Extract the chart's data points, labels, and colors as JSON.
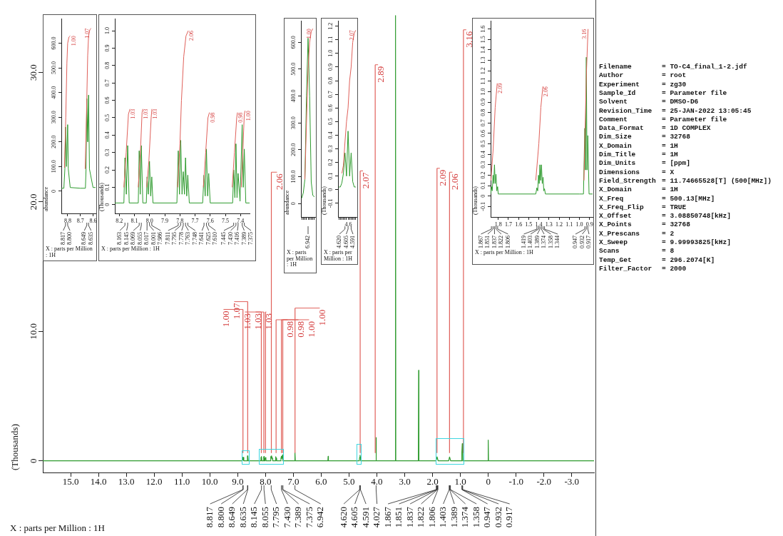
{
  "chart_data": [
    {
      "type": "line",
      "xlabel": "X : parts per Million : 1H",
      "ylabel": "(Thousands)",
      "marker": "none",
      "xlim": [
        16.0,
        -3.8
      ],
      "xticks": [
        {
          "value": 15,
          "label": "15.0"
        },
        {
          "value": 14,
          "label": "14.0"
        },
        {
          "value": 13,
          "label": "13.0"
        },
        {
          "value": 12,
          "label": "12.0"
        },
        {
          "value": 11,
          "label": "11.0"
        },
        {
          "value": 10,
          "label": "10.0"
        },
        {
          "value": 9,
          "label": "9.0"
        },
        {
          "value": 8,
          "label": "8.0"
        },
        {
          "value": 7,
          "label": "7.0"
        },
        {
          "value": 6,
          "label": "6.0"
        },
        {
          "value": 5,
          "label": "5.0"
        },
        {
          "value": 4,
          "label": "4.0"
        },
        {
          "value": 3,
          "label": "3.0"
        },
        {
          "value": 2,
          "label": "2.0"
        },
        {
          "value": 1,
          "label": "1.0"
        },
        0,
        {
          "value": -1,
          "label": "-1.0"
        },
        {
          "value": -2,
          "label": "-2.0"
        },
        {
          "value": -3,
          "label": "-3.0"
        }
      ],
      "ylim": [
        -0.9,
        34.5
      ],
      "yticks": [
        0,
        {
          "value": 10,
          "label": "10.0"
        },
        {
          "value": 20,
          "label": "20.0"
        },
        {
          "value": 30,
          "label": "30.0"
        }
      ],
      "x": [
        16.0,
        8.84,
        8.817,
        8.809,
        8.8,
        8.78,
        8.66,
        8.649,
        8.642,
        8.635,
        8.62,
        8.17,
        8.163,
        8.154,
        8.145,
        8.13,
        8.075,
        8.069,
        8.062,
        8.055,
        8.045,
        8.022,
        8.017,
        8.001,
        7.986,
        7.98,
        7.815,
        7.811,
        7.795,
        7.778,
        7.763,
        7.748,
        7.74,
        7.645,
        7.641,
        7.625,
        7.61,
        7.6,
        7.45,
        7.445,
        7.43,
        7.416,
        7.389,
        7.375,
        7.37,
        6.95,
        6.942,
        6.93,
        5.76,
        5.75,
        5.74,
        4.63,
        4.62,
        4.605,
        4.591,
        4.58,
        4.035,
        4.027,
        4.02,
        3.34,
        3.33,
        3.32,
        2.51,
        2.5,
        2.49,
        1.875,
        1.837,
        1.8,
        1.42,
        1.389,
        1.35,
        0.955,
        0.947,
        0.932,
        0.917,
        0.91,
        0.01,
        0.0,
        -0.01,
        -3.8
      ],
      "series": [
        {
          "color": "#2e9b2e",
          "values": [
            0,
            0,
            0.26,
            0.05,
            0.27,
            0,
            0,
            0.38,
            0.1,
            0.39,
            0,
            0,
            0.27,
            0.05,
            0.34,
            0,
            0,
            0.31,
            0.05,
            0.34,
            0,
            0,
            0.16,
            0.25,
            0.16,
            0,
            0,
            0.31,
            0.37,
            0.19,
            0.27,
            0.17,
            0,
            0,
            0.17,
            0.32,
            0.18,
            0,
            0,
            0.2,
            0.35,
            0.18,
            0.46,
            0.32,
            0,
            0,
            0.62,
            0,
            0,
            0.35,
            0,
            0,
            0.27,
            0.43,
            0.27,
            0,
            0,
            1.8,
            0,
            0,
            34.4,
            0,
            0,
            7.0,
            0,
            0,
            0.31,
            0,
            0,
            0.3,
            0,
            0,
            0.65,
            1.33,
            0.58,
            0,
            0,
            1.6,
            0,
            0
          ]
        },
        {
          "color": "#e0605a",
          "x": [
            8.81,
            8.81
          ],
          "values": [
            0.6,
            11.7
          ]
        },
        {
          "color": "#e0605a",
          "x": [
            8.64,
            8.64
          ],
          "values": [
            0.6,
            12.3
          ]
        },
        {
          "color": "#e0605a",
          "x": [
            8.15,
            8.15
          ],
          "values": [
            0.6,
            11.5
          ]
        },
        {
          "color": "#e0605a",
          "x": [
            8.06,
            8.06
          ],
          "values": [
            0.6,
            11.5
          ]
        },
        {
          "color": "#e0605a",
          "x": [
            8.0,
            8.0
          ],
          "values": [
            0.6,
            11.5
          ]
        },
        {
          "color": "#e0605a",
          "x": [
            7.79,
            7.79
          ],
          "values": [
            0.6,
            22.3
          ]
        },
        {
          "color": "#e0605a",
          "x": [
            7.62,
            7.62
          ],
          "values": [
            0.6,
            10.9
          ]
        },
        {
          "color": "#e0605a",
          "x": [
            7.43,
            7.43
          ],
          "values": [
            0.6,
            10.9
          ]
        },
        {
          "color": "#e0605a",
          "x": [
            7.38,
            7.38
          ],
          "values": [
            0.6,
            10.9
          ]
        },
        {
          "color": "#e0605a",
          "x": [
            6.94,
            6.94
          ],
          "values": [
            0.6,
            11.8
          ]
        },
        {
          "color": "#e0605a",
          "x": [
            4.6,
            4.6
          ],
          "values": [
            0.6,
            22.4
          ]
        },
        {
          "color": "#e0605a",
          "x": [
            4.06,
            4.06
          ],
          "values": [
            0.6,
            30.6
          ]
        },
        {
          "color": "#e0605a",
          "x": [
            1.84,
            1.84
          ],
          "values": [
            0.6,
            22.6
          ]
        },
        {
          "color": "#e0605a",
          "x": [
            1.39,
            1.39
          ],
          "values": [
            0.6,
            22.3
          ]
        },
        {
          "color": "#e0605a",
          "x": [
            0.89,
            0.89
          ],
          "values": [
            0.6,
            33.3
          ]
        }
      ],
      "annotations": [
        {
          "text": "1.00",
          "x": 8.81,
          "y": 11.7
        },
        {
          "text": "1.07",
          "x": 8.64,
          "y": 12.3
        },
        {
          "text": "1.03",
          "x": 8.15,
          "y": 11.5
        },
        {
          "text": "1.03",
          "x": 8.06,
          "y": 11.5
        },
        {
          "text": "1.03",
          "x": 8.0,
          "y": 11.5
        },
        {
          "text": "2.06",
          "x": 7.79,
          "y": 22.3
        },
        {
          "text": "0.98",
          "x": 7.62,
          "y": 10.9
        },
        {
          "text": "0.98",
          "x": 7.43,
          "y": 10.9
        },
        {
          "text": "1.00",
          "x": 7.38,
          "y": 10.9
        },
        {
          "text": "1.00",
          "x": 6.94,
          "y": 11.8
        },
        {
          "text": "2.07",
          "x": 4.6,
          "y": 22.4
        },
        {
          "text": "2.89",
          "x": 4.06,
          "y": 30.6
        },
        {
          "text": "2.09",
          "x": 1.84,
          "y": 22.6
        },
        {
          "text": "2.06",
          "x": 1.39,
          "y": 22.3
        },
        {
          "text": "3.16",
          "x": 0.89,
          "y": 33.3
        },
        {
          "text": "8.817",
          "x": 8.817
        },
        {
          "text": "8.800",
          "x": 8.8
        },
        {
          "text": "8.649",
          "x": 8.649
        },
        {
          "text": "8.635",
          "x": 8.635
        },
        {
          "text": "8.145",
          "x": 8.145
        },
        {
          "text": "8.055",
          "x": 8.055
        },
        {
          "text": "7.795",
          "x": 7.795
        },
        {
          "text": "7.430",
          "x": 7.43
        },
        {
          "text": "7.389",
          "x": 7.389
        },
        {
          "text": "7.375",
          "x": 7.375
        },
        {
          "text": "6.942",
          "x": 6.942
        },
        {
          "text": "4.620",
          "x": 4.62
        },
        {
          "text": "4.605",
          "x": 4.605
        },
        {
          "text": "4.591",
          "x": 4.591
        },
        {
          "text": "4.027",
          "x": 4.027
        },
        {
          "text": "1.867",
          "x": 1.867
        },
        {
          "text": "1.851",
          "x": 1.851
        },
        {
          "text": "1.837",
          "x": 1.837
        },
        {
          "text": "1.822",
          "x": 1.822
        },
        {
          "text": "1.806",
          "x": 1.806
        },
        {
          "text": "1.403",
          "x": 1.403
        },
        {
          "text": "1.389",
          "x": 1.389
        },
        {
          "text": "1.374",
          "x": 1.374
        },
        {
          "text": "1.358",
          "x": 1.358
        },
        {
          "text": "0.947",
          "x": 0.947
        },
        {
          "text": "0.932",
          "x": 0.932
        },
        {
          "text": "0.917",
          "x": 0.917
        }
      ]
    },
    {
      "type": "line",
      "xlabel": "X : parts per Million : 1H",
      "ylabel": "abundance",
      "marker": "none",
      "xlim": [
        8.85,
        8.58
      ],
      "xticks": [
        8.8,
        8.7,
        8.6
      ],
      "ylim": [
        -90,
        700
      ],
      "yticks": [
        0,
        {
          "value": 100,
          "label": "100.0"
        },
        {
          "value": 200,
          "label": "200.0"
        },
        {
          "value": 300,
          "label": "300.0"
        },
        {
          "value": 400,
          "label": "400.0"
        },
        {
          "value": 500,
          "label": "500.0"
        },
        {
          "value": 600,
          "label": "600.0"
        }
      ],
      "x": [
        8.85,
        8.83,
        8.822,
        8.817,
        8.809,
        8.8,
        8.795,
        8.78,
        8.7,
        8.66,
        8.655,
        8.649,
        8.642,
        8.635,
        8.628,
        8.6,
        8.58
      ],
      "series": [
        {
          "color": "#2e9b2e",
          "values": [
            12,
            12,
            90,
            260,
            100,
            270,
            90,
            15,
            12,
            12,
            90,
            375,
            200,
            390,
            90,
            15,
            15
          ]
        },
        {
          "color": "#e0605a",
          "x": [
            8.825,
            8.815,
            8.806,
            8.8,
            8.79,
            8.78,
            8.7,
            8.662,
            8.652,
            8.642,
            8.635,
            8.625,
            8.615
          ],
          "values": [
            95,
            300,
            520,
            600,
            625,
            630,
            null,
            90,
            300,
            550,
            630,
            655,
            660
          ]
        }
      ],
      "annotations": [
        {
          "text": "1.00",
          "x": 8.78,
          "y": 630
        },
        {
          "text": "1.07",
          "x": 8.615,
          "y": 660
        },
        {
          "text": "8.817",
          "x": 8.817
        },
        {
          "text": "8.800",
          "x": 8.8
        },
        {
          "text": "8.649",
          "x": 8.649
        },
        {
          "text": "8.635",
          "x": 8.635
        }
      ]
    },
    {
      "type": "line",
      "xlabel": "X : parts per Million : 1H",
      "ylabel": "(Thousands)",
      "marker": "none",
      "xlim": [
        8.23,
        7.34
      ],
      "xticks": [
        8.2,
        8.1,
        {
          "value": 8.0,
          "label": "8.0"
        },
        7.9,
        7.8,
        7.7,
        7.6,
        7.5,
        7.4
      ],
      "ylim": [
        -0.05,
        1.07
      ],
      "yticks": [
        0,
        0.1,
        0.2,
        0.3,
        0.4,
        0.5,
        0.6,
        0.7,
        0.8,
        0.9,
        {
          "value": 1.0,
          "label": "1.0"
        }
      ],
      "x": [
        8.23,
        8.17,
        8.163,
        8.154,
        8.145,
        8.135,
        8.075,
        8.069,
        8.062,
        8.055,
        8.045,
        8.022,
        8.017,
        8.009,
        8.001,
        7.993,
        7.986,
        7.978,
        7.82,
        7.811,
        7.803,
        7.795,
        7.786,
        7.778,
        7.77,
        7.763,
        7.755,
        7.748,
        7.738,
        7.65,
        7.641,
        7.633,
        7.625,
        7.617,
        7.61,
        7.6,
        7.452,
        7.445,
        7.437,
        7.43,
        7.423,
        7.416,
        7.403,
        7.389,
        7.382,
        7.375,
        7.365,
        7.34
      ],
      "series": [
        {
          "color": "#2e9b2e",
          "values": [
            0.01,
            0.01,
            0.27,
            0.06,
            0.34,
            0.01,
            0.01,
            0.31,
            0.06,
            0.34,
            0.01,
            0.01,
            0.16,
            0.06,
            0.25,
            0.05,
            0.16,
            0.01,
            0.01,
            0.31,
            0.06,
            0.37,
            0.06,
            0.19,
            0.06,
            0.27,
            0.05,
            0.17,
            0.01,
            0.01,
            0.17,
            0.05,
            0.32,
            0.05,
            0.18,
            0.01,
            0.01,
            0.2,
            0.04,
            0.35,
            0.04,
            0.18,
            0.02,
            0.46,
            0.1,
            0.32,
            0.01,
            0.01
          ]
        },
        {
          "color": "#e0605a",
          "x": [
            8.17,
            8.155,
            8.14,
            8.13,
            8.1,
            8.075,
            8.06,
            8.05,
            8.045,
            8.03,
            8.02,
            8.005,
            7.99,
            7.985,
            7.9,
            7.815,
            7.8,
            7.79,
            7.775,
            7.76,
            7.745,
            7.7,
            7.645,
            7.63,
            7.615,
            7.605,
            7.5,
            7.455,
            7.44,
            7.425,
            7.42,
            7.4,
            7.395,
            7.385,
            7.375,
            7.37
          ],
          "values": [
            0.1,
            0.3,
            0.52,
            0.55,
            null,
            0.1,
            0.32,
            0.53,
            0.55,
            null,
            0.1,
            0.25,
            0.5,
            0.55,
            null,
            0.1,
            0.35,
            0.6,
            0.85,
            0.97,
            1.0,
            null,
            0.1,
            0.3,
            0.5,
            0.53,
            null,
            0.1,
            0.3,
            0.5,
            0.53,
            null,
            0.1,
            0.3,
            0.52,
            0.54
          ]
        }
      ],
      "annotations": [
        {
          "text": "1.03",
          "x": 8.13,
          "y": 0.55
        },
        {
          "text": "1.03",
          "x": 8.045,
          "y": 0.55
        },
        {
          "text": "1.03",
          "x": 7.985,
          "y": 0.55
        },
        {
          "text": "2.06",
          "x": 7.745,
          "y": 1.0
        },
        {
          "text": "0.98",
          "x": 7.605,
          "y": 0.53
        },
        {
          "text": "0.98",
          "x": 7.42,
          "y": 0.53
        },
        {
          "text": "1.00",
          "x": 7.37,
          "y": 0.54
        },
        {
          "text": "8.163",
          "x": 8.163
        },
        {
          "text": "8.145",
          "x": 8.145
        },
        {
          "text": "8.069",
          "x": 8.069
        },
        {
          "text": "8.055",
          "x": 8.055
        },
        {
          "text": "8.017",
          "x": 8.017
        },
        {
          "text": "8.001",
          "x": 8.001
        },
        {
          "text": "7.986",
          "x": 7.986
        },
        {
          "text": "7.811",
          "x": 7.811
        },
        {
          "text": "7.795",
          "x": 7.795
        },
        {
          "text": "7.778",
          "x": 7.778
        },
        {
          "text": "7.763",
          "x": 7.763
        },
        {
          "text": "7.748",
          "x": 7.748
        },
        {
          "text": "7.641",
          "x": 7.641
        },
        {
          "text": "7.625",
          "x": 7.625
        },
        {
          "text": "7.610",
          "x": 7.61
        },
        {
          "text": "7.445",
          "x": 7.445
        },
        {
          "text": "7.430",
          "x": 7.43
        },
        {
          "text": "7.416",
          "x": 7.416
        },
        {
          "text": "7.389",
          "x": 7.389
        },
        {
          "text": "7.375",
          "x": 7.375
        }
      ]
    },
    {
      "type": "line",
      "xlabel": "X : parts per Million : 1H",
      "ylabel": "abundance",
      "marker": "none",
      "tick_labels": "y",
      "categories": [
        null,
        null,
        null,
        null,
        null,
        null,
        null,
        null,
        null
      ],
      "ylim": [
        -50,
        680
      ],
      "yticks": [
        0,
        {
          "value": 100,
          "label": "100.0"
        },
        {
          "value": 200,
          "label": "200.0"
        },
        {
          "value": 300,
          "label": "300.0"
        },
        {
          "value": 400,
          "label": "400.0"
        },
        {
          "value": 500,
          "label": "500.0"
        },
        {
          "value": 600,
          "label": "600.0"
        }
      ],
      "series": [
        {
          "color": "#2e9b2e",
          "values": [
            20,
            40,
            90,
            400,
            615,
            400,
            80,
            30,
            25
          ]
        },
        {
          "color": "#e0605a",
          "values": [
            null,
            null,
            90,
            300,
            500,
            600,
            640,
            650,
            null
          ]
        }
      ],
      "annotations": [
        "1.00",
        "6.942"
      ]
    },
    {
      "type": "line",
      "xlabel": "X : parts per Million : 1H",
      "ylabel": "(Thousands)",
      "marker": "none",
      "tick_labels": "y",
      "categories": [
        null,
        null,
        null,
        null,
        null,
        null,
        null,
        null,
        null,
        null,
        null,
        null
      ],
      "ylim": [
        -0.2,
        1.24
      ],
      "yticks": [
        -0.1,
        0,
        0.1,
        0.2,
        0.3,
        0.4,
        0.5,
        0.6,
        0.7,
        0.8,
        0.9,
        {
          "value": 1.0,
          "label": "1.0"
        },
        1.1,
        1.2
      ],
      "series": [
        {
          "color": "#2e9b2e",
          "values": [
            0.02,
            0.02,
            0.05,
            0.12,
            0.27,
            0.1,
            0.43,
            0.1,
            0.27,
            0.06,
            0.02,
            0.02
          ]
        },
        {
          "color": "#e0605a",
          "values": [
            null,
            null,
            0.12,
            0.18,
            0.35,
            0.5,
            0.6,
            0.8,
            0.9,
            1.08,
            1.15,
            1.17
          ]
        }
      ],
      "annotations": [
        "2.07",
        "4.6",
        "4.620",
        "4.605",
        "4.591"
      ]
    },
    {
      "type": "line",
      "xlabel": "X : parts per Million : 1H",
      "ylabel": "(Thousands)",
      "marker": "none",
      "xlim": [
        1.875,
        0.87
      ],
      "xticks": [
        1.8,
        1.7,
        1.6,
        1.5,
        1.4,
        1.3,
        1.2,
        1.1,
        {
          "value": 1.0,
          "label": "1.0"
        },
        0.9
      ],
      "ylim": [
        -0.2,
        1.68
      ],
      "yticks": [
        -0.1,
        0,
        0.1,
        0.2,
        0.3,
        0.4,
        0.5,
        0.6,
        0.7,
        0.8,
        0.9,
        {
          "value": 1.0,
          "label": "1.0"
        },
        1.1,
        1.2,
        1.3,
        1.4,
        1.5,
        1.6
      ],
      "x": [
        1.875,
        1.872,
        1.867,
        1.859,
        1.851,
        1.844,
        1.837,
        1.83,
        1.822,
        1.814,
        1.806,
        1.8,
        1.43,
        1.419,
        1.411,
        1.403,
        1.396,
        1.389,
        1.382,
        1.374,
        1.366,
        1.358,
        1.351,
        1.344,
        1.335,
        1.0,
        0.96,
        0.947,
        0.94,
        0.932,
        0.925,
        0.917,
        0.905,
        0.87
      ],
      "series": [
        {
          "color": "#2e9b2e",
          "values": [
            0.02,
            0.02,
            0.09,
            0.05,
            0.2,
            0.12,
            0.3,
            0.12,
            0.21,
            0.05,
            0.09,
            0.02,
            0.02,
            0.08,
            0.05,
            0.2,
            0.12,
            0.3,
            0.15,
            0.3,
            0.12,
            0.18,
            0.05,
            0.07,
            0.02,
            0.02,
            0.02,
            0.65,
            0.25,
            1.33,
            0.25,
            0.58,
            0.02,
            0.02
          ]
        },
        {
          "color": "#e0605a",
          "x": [
            1.872,
            1.85,
            1.83,
            1.81,
            1.6,
            1.43,
            1.4,
            1.38,
            1.36,
            1.1,
            0.955,
            0.945,
            0.93,
            0.915
          ],
          "values": [
            0.15,
            0.45,
            0.85,
            1.08,
            null,
            0.15,
            0.5,
            0.85,
            1.05,
            null,
            0.15,
            0.6,
            1.2,
            1.6
          ]
        }
      ],
      "annotations": [
        {
          "text": "2.09",
          "x": 1.81,
          "y": 1.08
        },
        {
          "text": "2.06",
          "x": 1.36,
          "y": 1.05
        },
        {
          "text": "3.16",
          "x": 0.915,
          "y": 1.6
        },
        {
          "text": "1.867",
          "x": 1.867
        },
        {
          "text": "1.851",
          "x": 1.851
        },
        {
          "text": "1.837",
          "x": 1.837
        },
        {
          "text": "1.822",
          "x": 1.822
        },
        {
          "text": "1.806",
          "x": 1.806
        },
        {
          "text": "1.419",
          "x": 1.419
        },
        {
          "text": "1.403",
          "x": 1.403
        },
        {
          "text": "1.389",
          "x": 1.389
        },
        {
          "text": "1.374",
          "x": 1.374
        },
        {
          "text": "1.358",
          "x": 1.358
        },
        {
          "text": "1.344",
          "x": 1.344
        },
        {
          "text": "0.947",
          "x": 0.947
        },
        {
          "text": "0.932",
          "x": 0.932
        },
        {
          "text": "0.917",
          "x": 0.917
        }
      ]
    },
    {
      "type": "other",
      "annotations": [
        "Filename = TO-C4_final_1-2.jdf",
        "Author = root",
        "Experiment = zg30",
        "Sample_Id = Parameter file",
        "Solvent = DMSO-D6",
        "Revision_Time = 25-JAN-2022 13:05:45",
        "Comment = Parameter file",
        "Data_Format = 1D COMPLEX",
        "Dim_Size = 32768",
        "X_Domain = 1H",
        "Dim_Title = 1H",
        "Dim_Units = [ppm]",
        "Dimensions = X",
        "Field_Strength = 11.74665528[T] (500[MHz])",
        "X_Domain = 1H",
        "X_Freq = 500.13[MHz]",
        "X_Freq_Flip = TRUE",
        "X_Offset = 3.08850748[kHz]",
        "X_Points = 32768",
        "X_Prescans = 2",
        "X_Sweep = 9.99993825[kHz]",
        "Scans = 8",
        "Temp_Get = 296.2074[K]",
        "Filter_Factor = 2000"
      ]
    }
  ]
}
